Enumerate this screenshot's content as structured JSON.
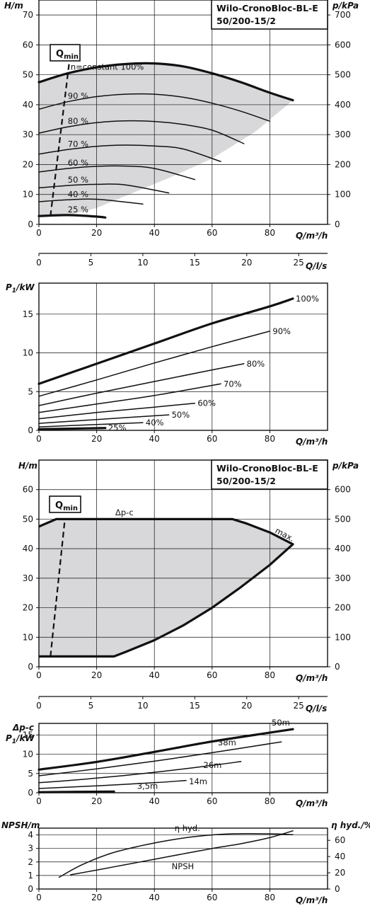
{
  "chart_data": [
    {
      "type": "line",
      "title_lines": [
        "Wilo-CronoBloc-BL-E",
        "50/200-15/2"
      ],
      "xlabel": "Q/m³/h",
      "ylabel": "H/m",
      "y2label": "p/kPa",
      "xlim": [
        0,
        100
      ],
      "ylim": [
        0,
        75
      ],
      "y2lim": [
        0,
        750
      ],
      "xticks": [
        "0",
        "20",
        "40",
        "60",
        "80"
      ],
      "yticks": [
        "0",
        "10",
        "20",
        "30",
        "40",
        "50",
        "60",
        "70"
      ],
      "y2ticks": [
        "0",
        "100",
        "200",
        "300",
        "400",
        "500",
        "600",
        "700"
      ],
      "grid": true,
      "qmin_label": {
        "main": "Q",
        "sub": "min"
      },
      "series": [
        {
          "name": "n=constant 100%",
          "x": [
            0,
            10,
            20,
            30,
            40,
            50,
            60,
            70,
            80,
            88
          ],
          "y": [
            47.5,
            50.5,
            52.5,
            53.6,
            53.8,
            52.8,
            50.5,
            47.5,
            44,
            41.5
          ],
          "bold": true
        },
        {
          "name": "90 %",
          "x": [
            0,
            10,
            20,
            30,
            40,
            50,
            60,
            70,
            80
          ],
          "y": [
            38.5,
            41,
            42.7,
            43.5,
            43.5,
            42.5,
            40.5,
            37.8,
            34.5
          ]
        },
        {
          "name": "80 %",
          "x": [
            0,
            10,
            20,
            30,
            40,
            50,
            60,
            71
          ],
          "y": [
            30.5,
            32.6,
            34,
            34.6,
            34.4,
            33.4,
            31.5,
            27
          ]
        },
        {
          "name": "70 %",
          "x": [
            0,
            10,
            20,
            30,
            40,
            50,
            63
          ],
          "y": [
            23.5,
            25,
            26.1,
            26.5,
            26.2,
            25.2,
            21
          ]
        },
        {
          "name": "60 %",
          "x": [
            0,
            10,
            20,
            30,
            40,
            54
          ],
          "y": [
            17.5,
            18.7,
            19.4,
            19.5,
            18.7,
            15
          ]
        },
        {
          "name": "50 %",
          "x": [
            0,
            10,
            20,
            30,
            45
          ],
          "y": [
            12.2,
            13,
            13.4,
            13.2,
            10.5
          ]
        },
        {
          "name": "40 %",
          "x": [
            0,
            10,
            20,
            36
          ],
          "y": [
            7.6,
            8.2,
            8.4,
            6.8
          ]
        },
        {
          "name": "25 %",
          "x": [
            0,
            10,
            20,
            23
          ],
          "y": [
            2.8,
            3.1,
            2.6,
            2.3
          ],
          "bold": true
        }
      ],
      "envelope": {
        "x": [
          0,
          10,
          20,
          30,
          40,
          50,
          60,
          70,
          80,
          88,
          75,
          60,
          45,
          30,
          20,
          12,
          5,
          0
        ],
        "y": [
          47.5,
          50.5,
          52.5,
          53.6,
          53.8,
          52.8,
          50.5,
          47.5,
          44,
          41.5,
          31,
          22,
          15.5,
          9.5,
          5.5,
          3.5,
          2.8,
          2.8
        ]
      },
      "qmin_line": {
        "x": [
          4,
          11
        ],
        "y": [
          2.8,
          58
        ]
      }
    },
    {
      "type": "axis",
      "xlabel": "Q/l/s",
      "ticks": [
        "0",
        "5",
        "10",
        "15",
        "20",
        "25"
      ],
      "values": [
        0,
        5,
        10,
        15,
        20,
        25
      ]
    },
    {
      "type": "line",
      "ylabel_main": "P",
      "ylabel_sub": "1",
      "ylabel_unit": "/kW",
      "xlabel": "Q/m³/h",
      "xlim": [
        0,
        100
      ],
      "ylim": [
        0,
        19
      ],
      "xticks": [
        "0",
        "20",
        "40",
        "60",
        "80"
      ],
      "yticks": [
        "0",
        "5",
        "10",
        "15"
      ],
      "grid": true,
      "series": [
        {
          "name": "100%",
          "x": [
            0,
            20,
            40,
            60,
            80,
            88
          ],
          "y": [
            6,
            8.6,
            11.2,
            13.8,
            16,
            17
          ],
          "bold": true
        },
        {
          "name": "90%",
          "x": [
            0,
            20,
            40,
            60,
            80
          ],
          "y": [
            4.4,
            6.5,
            8.7,
            10.8,
            12.8
          ]
        },
        {
          "name": "80%",
          "x": [
            0,
            20,
            40,
            60,
            71
          ],
          "y": [
            3.2,
            4.8,
            6.3,
            7.8,
            8.6
          ]
        },
        {
          "name": "70%",
          "x": [
            0,
            20,
            40,
            63
          ],
          "y": [
            2.3,
            3.4,
            4.5,
            6
          ]
        },
        {
          "name": "60%",
          "x": [
            0,
            20,
            40,
            54
          ],
          "y": [
            1.5,
            2.3,
            3.0,
            3.5
          ]
        },
        {
          "name": "50%",
          "x": [
            0,
            20,
            45
          ],
          "y": [
            0.9,
            1.4,
            2.0
          ]
        },
        {
          "name": "40%",
          "x": [
            0,
            20,
            36
          ],
          "y": [
            0.45,
            0.75,
            1.0
          ]
        },
        {
          "name": "25%",
          "x": [
            0,
            23
          ],
          "y": [
            0.15,
            0.3
          ],
          "bold": true
        }
      ]
    },
    {
      "type": "line",
      "title_lines": [
        "Wilo-CronoBloc-BL-E",
        "50/200-15/2"
      ],
      "xlabel": "Q/m³/h",
      "ylabel": "H/m",
      "y2label": "p/kPa",
      "xlim": [
        0,
        100
      ],
      "ylim": [
        0,
        70
      ],
      "y2lim": [
        0,
        700
      ],
      "xticks": [
        "0",
        "20",
        "40",
        "60",
        "80"
      ],
      "yticks": [
        "0",
        "10",
        "20",
        "30",
        "40",
        "50",
        "60"
      ],
      "y2ticks": [
        "0",
        "100",
        "200",
        "300",
        "400",
        "500",
        "600"
      ],
      "grid": true,
      "qmin_label": {
        "main": "Q",
        "sub": "min"
      },
      "labels": {
        "dpc": "Δp-c",
        "max": "max."
      },
      "envelope": {
        "x": [
          0,
          6,
          15,
          30,
          45,
          60,
          67,
          72,
          80,
          88,
          80,
          70,
          60,
          50,
          40,
          30,
          26,
          15,
          0
        ],
        "y": [
          47.5,
          50,
          50,
          50,
          50,
          50,
          50,
          48.5,
          45.5,
          41.5,
          34.5,
          27,
          20,
          14,
          9,
          5,
          3.5,
          3.5,
          3.5
        ]
      },
      "qmin_line": {
        "x": [
          4,
          9
        ],
        "y": [
          3.5,
          50
        ]
      }
    },
    {
      "type": "axis",
      "xlabel": "Q/l/s",
      "ticks": [
        "0",
        "5",
        "10",
        "15",
        "20",
        "25"
      ],
      "values": [
        0,
        5,
        10,
        15,
        20,
        25
      ]
    },
    {
      "type": "line",
      "ylabel_top": "Δp-c",
      "ylabel_main": "P",
      "ylabel_sub": "1",
      "ylabel_unit": "/kW",
      "xlabel": "Q/m³/h",
      "xlim": [
        0,
        100
      ],
      "ylim": [
        0,
        18
      ],
      "xticks": [
        "0",
        "20",
        "40",
        "60",
        "80"
      ],
      "yticks": [
        "0",
        "5",
        "10",
        "15"
      ],
      "grid": true,
      "series": [
        {
          "name": "50m",
          "x": [
            0,
            20,
            40,
            60,
            80,
            88
          ],
          "y": [
            6,
            8,
            10.6,
            13.3,
            15.6,
            16.5
          ],
          "bold": true
        },
        {
          "name": "38m",
          "x": [
            0,
            20,
            40,
            60,
            84
          ],
          "y": [
            4.4,
            6.2,
            8.2,
            10.4,
            13.2
          ]
        },
        {
          "name": "26m",
          "x": [
            0,
            20,
            40,
            58,
            70
          ],
          "y": [
            2.6,
            3.8,
            5.3,
            6.9,
            8.1
          ]
        },
        {
          "name": "14m",
          "x": [
            0,
            20,
            40,
            51
          ],
          "y": [
            1.1,
            1.8,
            2.6,
            3.2
          ]
        },
        {
          "name": "3,5m",
          "x": [
            0,
            26
          ],
          "y": [
            0.15,
            0.3
          ],
          "bold": true
        }
      ]
    },
    {
      "type": "line",
      "ylabel": "NPSH/m",
      "y2label": "η hyd./%",
      "xlabel": "Q/m³/h",
      "xlim": [
        0,
        100
      ],
      "ylim": [
        0,
        4.5
      ],
      "y2lim": [
        0,
        75
      ],
      "xticks": [
        "0",
        "20",
        "40",
        "60",
        "80"
      ],
      "yticks": [
        "0",
        "1",
        "2",
        "3",
        "4"
      ],
      "y2ticks": [
        "0",
        "20",
        "40",
        "60"
      ],
      "grid": true,
      "series": [
        {
          "name": "η hyd.",
          "axis": "right",
          "x": [
            7,
            15,
            25,
            35,
            45,
            55,
            67,
            80,
            88
          ],
          "y": [
            14.5,
            30,
            44,
            53,
            60,
            65,
            68,
            68,
            67
          ]
        },
        {
          "name": "NPSH",
          "axis": "left",
          "x": [
            11,
            20,
            30,
            40,
            50,
            60,
            70,
            80,
            88
          ],
          "y": [
            1.05,
            1.4,
            1.8,
            2.2,
            2.6,
            3.0,
            3.35,
            3.8,
            4.3
          ]
        }
      ]
    }
  ]
}
